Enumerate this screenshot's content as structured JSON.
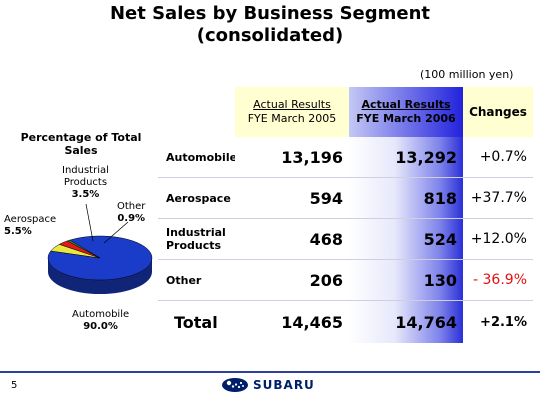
{
  "title_line1": "Net Sales by Business Segment",
  "title_line2": "(consolidated)",
  "unit": "(100 million yen)",
  "headers": {
    "col2005_line1": "Actual Results",
    "col2005_line2": "FYE March 2005",
    "col2006_line1": "Actual Results",
    "col2006_line2": "FYE March 2006",
    "changes": "Changes"
  },
  "rows": [
    {
      "segment": "Automobile",
      "fy2005": "13,196",
      "fy2006": "13,292",
      "change": "+0.7%"
    },
    {
      "segment": "Aerospace",
      "fy2005": "594",
      "fy2006": "818",
      "change": "+37.7%"
    },
    {
      "segment_line1": "Industrial",
      "segment_line2": "Products",
      "fy2005": "468",
      "fy2006": "524",
      "change": "+12.0%"
    },
    {
      "segment": "Other",
      "fy2005": "206",
      "fy2006": "130",
      "change": "- 36.9%"
    }
  ],
  "total": {
    "label": "Total",
    "fy2005": "14,465",
    "fy2006": "14,764",
    "change": "+2.1%"
  },
  "chart_data": {
    "type": "pie",
    "title": "Percentage of Total Sales",
    "title_line1": "Percentage of Total",
    "title_line2": "Sales",
    "slices": [
      {
        "name": "Automobile",
        "value": 90.0,
        "label": "90.0%",
        "color": "#1a3cc8"
      },
      {
        "name": "Aerospace",
        "value": 5.5,
        "label": "5.5%",
        "color": "#e8e840"
      },
      {
        "name_line1": "Industrial",
        "name_line2": "Products",
        "value": 3.5,
        "label": "3.5%",
        "color": "#e01818"
      },
      {
        "name": "Other",
        "value": 0.9,
        "label": "0.9%",
        "color": "#2a9a3a"
      }
    ]
  },
  "footer": {
    "page_number": "5",
    "brand": "SUBARU"
  }
}
